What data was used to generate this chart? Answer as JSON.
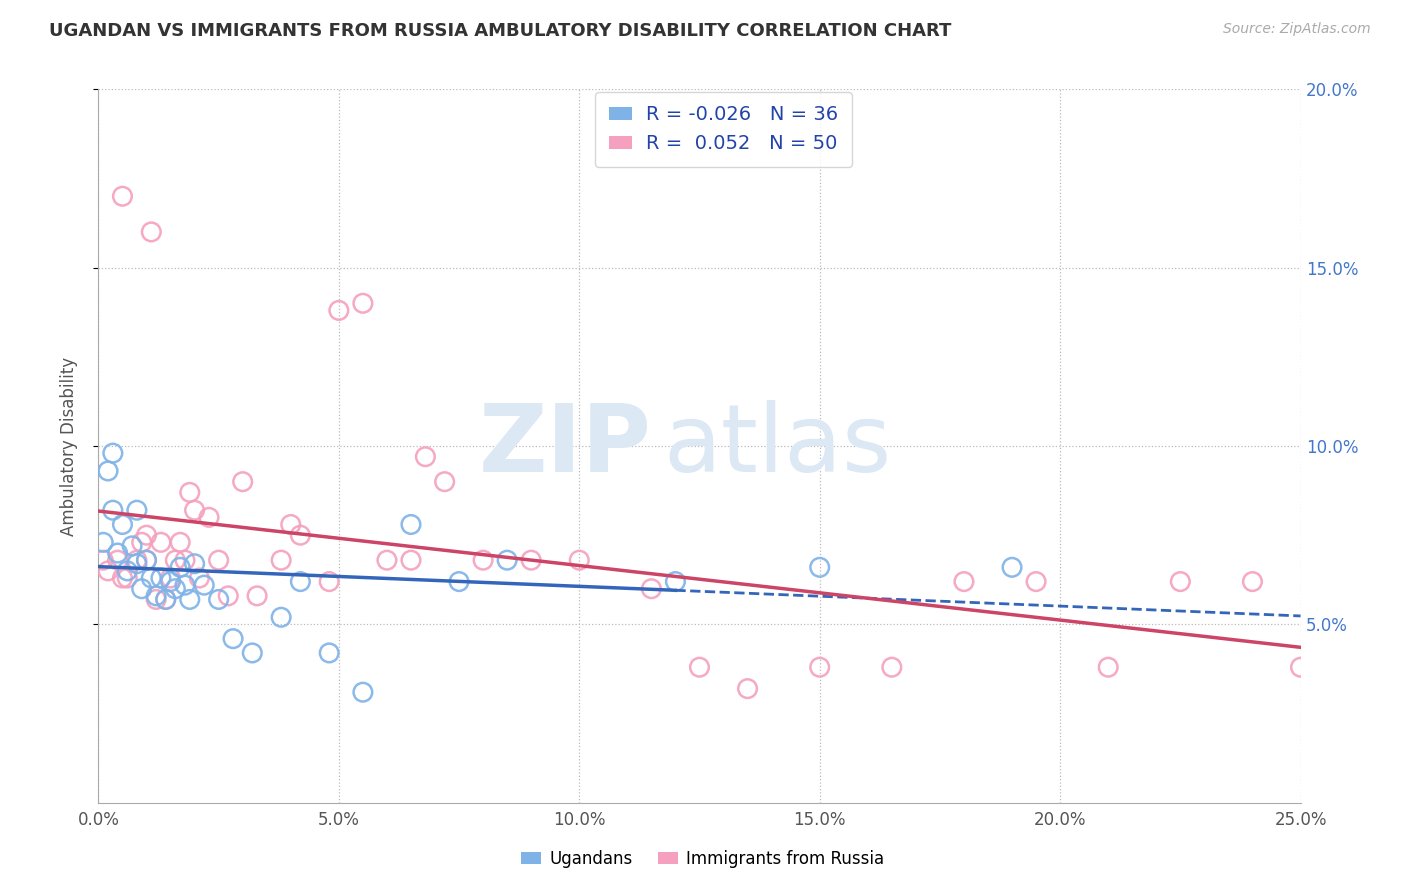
{
  "title": "UGANDAN VS IMMIGRANTS FROM RUSSIA AMBULATORY DISABILITY CORRELATION CHART",
  "source": "Source: ZipAtlas.com",
  "ylabel": "Ambulatory Disability",
  "xlim": [
    0.0,
    0.25
  ],
  "ylim": [
    0.0,
    0.2
  ],
  "xticks": [
    0.0,
    0.05,
    0.1,
    0.15,
    0.2,
    0.25
  ],
  "yticks": [
    0.05,
    0.1,
    0.15,
    0.2
  ],
  "xticklabels": [
    "0.0%",
    "5.0%",
    "10.0%",
    "15.0%",
    "20.0%",
    "25.0%"
  ],
  "yticklabels_right": [
    "5.0%",
    "10.0%",
    "15.0%",
    "20.0%"
  ],
  "legend_labels": [
    "Ugandans",
    "Immigrants from Russia"
  ],
  "ugandan_color": "#7fb3e8",
  "russia_color": "#f5a0be",
  "ugandan_line_color": "#3366bb",
  "russia_line_color": "#cc4466",
  "r_ugandan": -0.026,
  "n_ugandan": 36,
  "r_russia": 0.052,
  "n_russia": 50,
  "ugandan_x": [
    0.001,
    0.002,
    0.003,
    0.004,
    0.005,
    0.006,
    0.007,
    0.008,
    0.009,
    0.01,
    0.011,
    0.012,
    0.013,
    0.014,
    0.015,
    0.016,
    0.017,
    0.018,
    0.019,
    0.02,
    0.022,
    0.025,
    0.028,
    0.032,
    0.038,
    0.042,
    0.048,
    0.055,
    0.065,
    0.075,
    0.085,
    0.12,
    0.15,
    0.19,
    0.003,
    0.008
  ],
  "ugandan_y": [
    0.073,
    0.093,
    0.082,
    0.07,
    0.078,
    0.065,
    0.072,
    0.067,
    0.06,
    0.068,
    0.063,
    0.058,
    0.063,
    0.057,
    0.062,
    0.06,
    0.066,
    0.061,
    0.057,
    0.067,
    0.061,
    0.057,
    0.046,
    0.042,
    0.052,
    0.062,
    0.042,
    0.031,
    0.078,
    0.062,
    0.068,
    0.062,
    0.066,
    0.066,
    0.098,
    0.082
  ],
  "russia_x": [
    0.001,
    0.002,
    0.004,
    0.006,
    0.008,
    0.009,
    0.01,
    0.011,
    0.012,
    0.013,
    0.014,
    0.015,
    0.016,
    0.017,
    0.018,
    0.019,
    0.02,
    0.021,
    0.023,
    0.025,
    0.027,
    0.03,
    0.033,
    0.038,
    0.042,
    0.048,
    0.055,
    0.06,
    0.065,
    0.072,
    0.08,
    0.09,
    0.1,
    0.115,
    0.125,
    0.135,
    0.15,
    0.165,
    0.18,
    0.195,
    0.21,
    0.225,
    0.24,
    0.25,
    0.04,
    0.068,
    0.005,
    0.005,
    0.01,
    0.05
  ],
  "russia_y": [
    0.068,
    0.065,
    0.068,
    0.063,
    0.068,
    0.073,
    0.068,
    0.16,
    0.057,
    0.073,
    0.057,
    0.063,
    0.068,
    0.073,
    0.068,
    0.087,
    0.082,
    0.063,
    0.08,
    0.068,
    0.058,
    0.09,
    0.058,
    0.068,
    0.075,
    0.062,
    0.14,
    0.068,
    0.068,
    0.09,
    0.068,
    0.068,
    0.068,
    0.06,
    0.038,
    0.032,
    0.038,
    0.038,
    0.062,
    0.062,
    0.038,
    0.062,
    0.062,
    0.038,
    0.078,
    0.097,
    0.17,
    0.063,
    0.075,
    0.138
  ]
}
